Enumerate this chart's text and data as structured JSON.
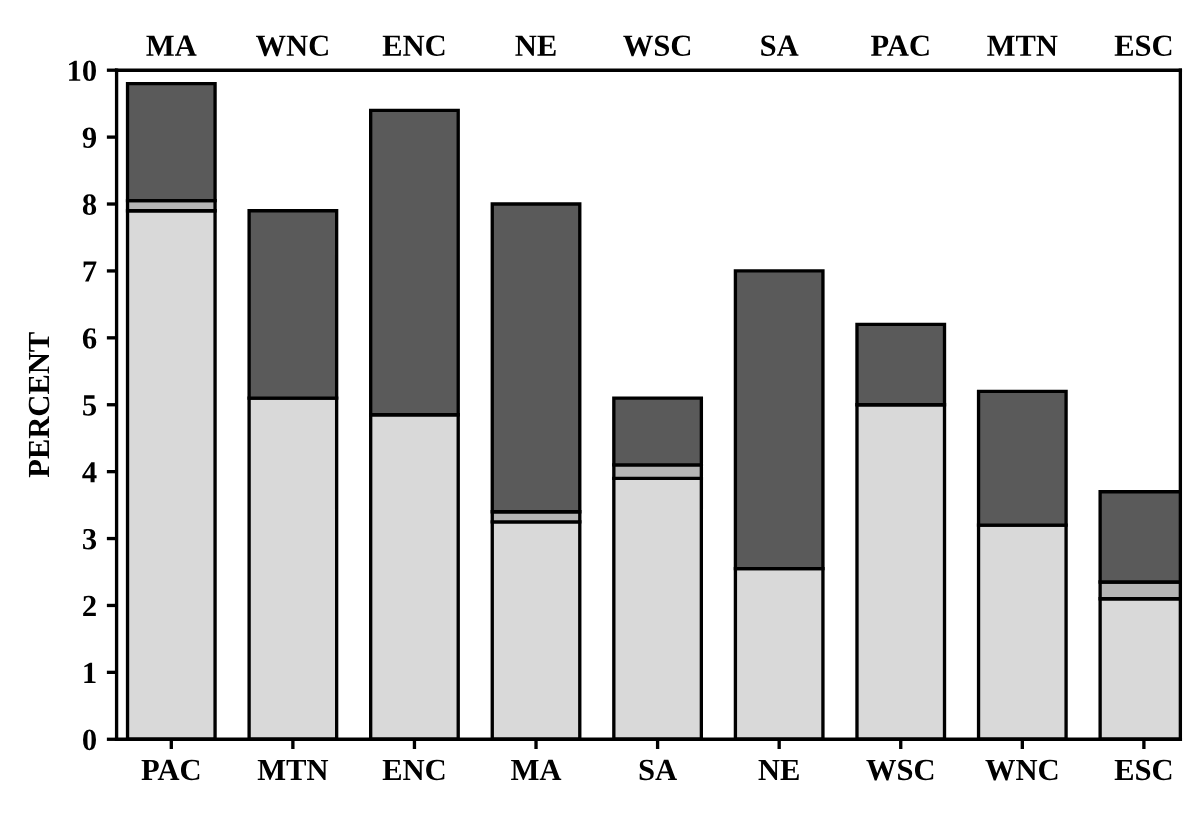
{
  "chart_data": {
    "type": "bar",
    "stacked": true,
    "ylabel": "PERCENT",
    "categories": [
      "PAC",
      "MTN",
      "ENC",
      "MA",
      "SA",
      "NE",
      "WSC",
      "WNC",
      "ESC"
    ],
    "series": [
      {
        "color": "#d9d9d9",
        "values": [
          7.9,
          5.1,
          4.85,
          3.25,
          3.9,
          2.55,
          5.0,
          3.2,
          2.1
        ]
      },
      {
        "color": "#b5b5b5",
        "values": [
          0.15,
          null,
          null,
          0.15,
          0.2,
          null,
          null,
          null,
          0.25
        ]
      },
      {
        "color": "#5a5a5a",
        "values": [
          1.75,
          2.8,
          4.55,
          4.6,
          1.0,
          4.45,
          1.2,
          2.0,
          1.35
        ]
      }
    ],
    "ylim": [
      0,
      10
    ],
    "yticks": [
      0,
      1,
      2,
      3,
      4,
      5,
      6,
      7,
      8,
      9,
      10
    ],
    "annotations": [
      "MA",
      "WNC",
      "ENC",
      "NE",
      "WSC",
      "SA",
      "PAC",
      "MTN",
      "ESC"
    ],
    "grid": false,
    "legend": false
  }
}
